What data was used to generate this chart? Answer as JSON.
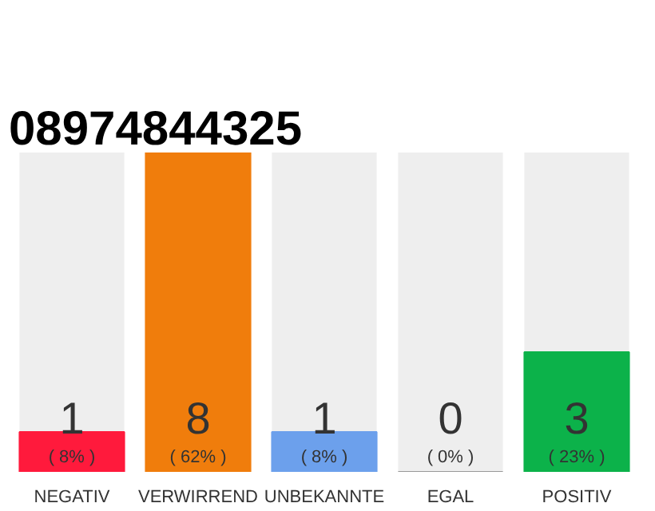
{
  "chart_data": {
    "type": "bar",
    "title": "08974844325",
    "categories": [
      "NEGATIV",
      "VERWIRREND",
      "UNBEKANNTE",
      "EGAL",
      "POSITIV"
    ],
    "values": [
      1,
      8,
      1,
      0,
      3
    ],
    "colors": [
      "#ff1a3c",
      "#f07d0c",
      "#6ca0ec",
      "#9a9a9a",
      "#0cb24a"
    ],
    "value_labels": [
      "1\n( 8% )",
      "8\n( 62% )",
      "1\n( 8% )",
      "0\n( 0% )",
      "3\n( 23% )"
    ],
    "grid": false
  }
}
